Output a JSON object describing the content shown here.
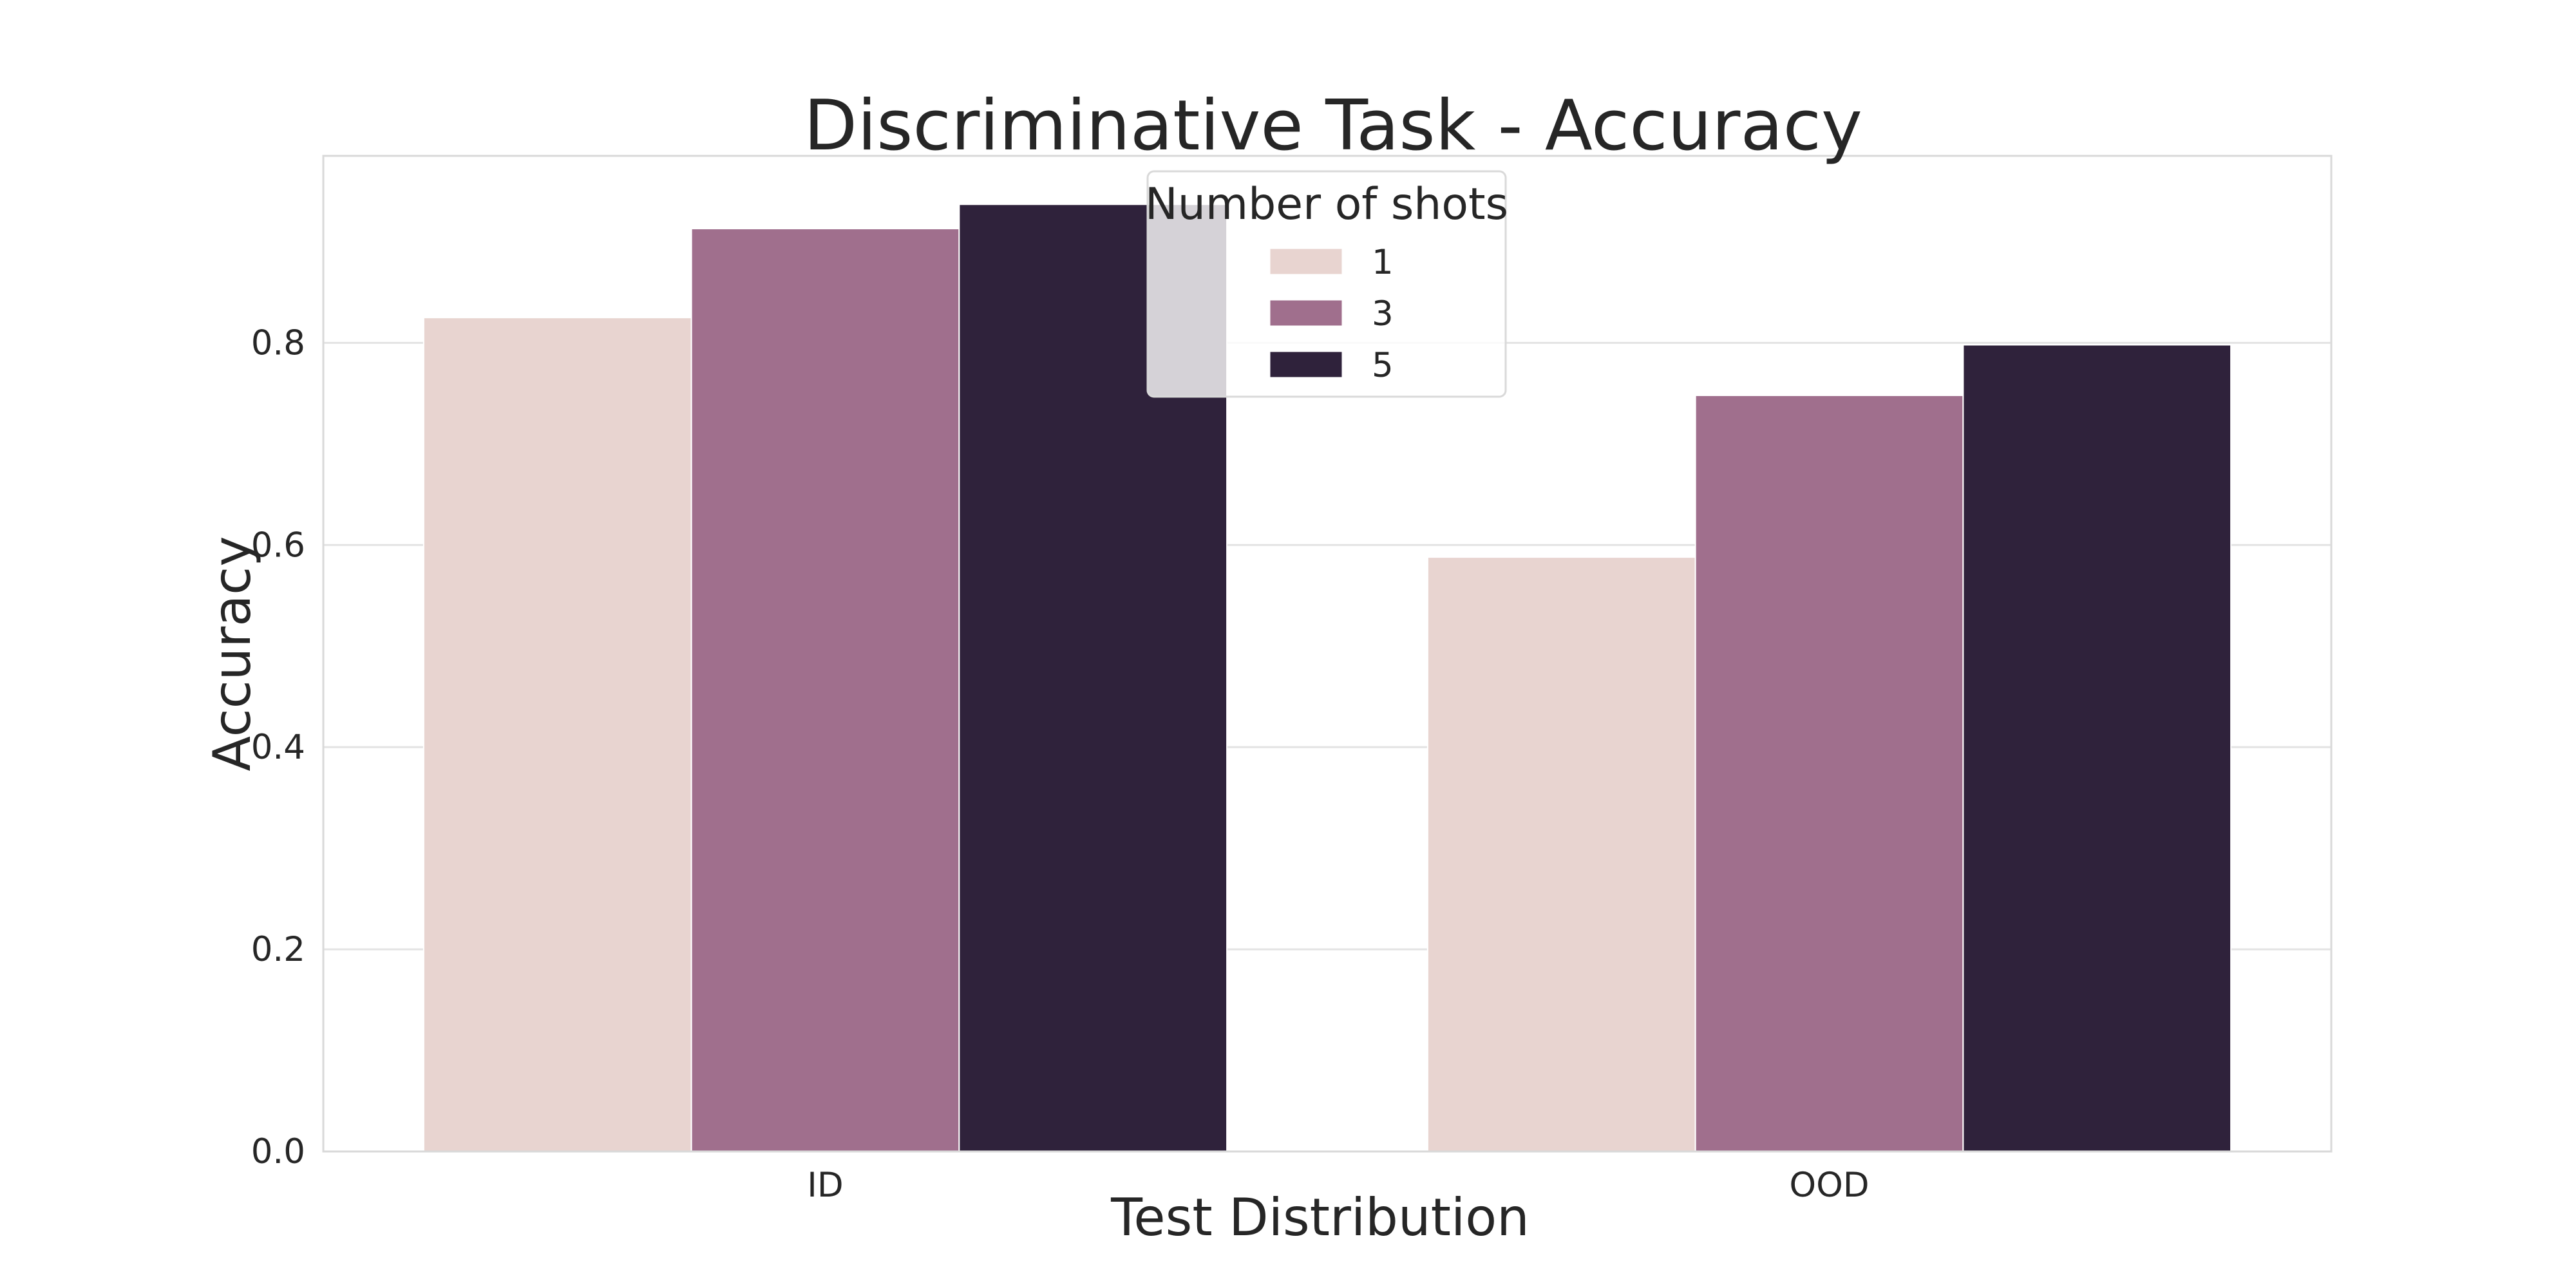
{
  "chart_data": {
    "type": "bar",
    "title": "Discriminative Task - Accuracy",
    "xlabel": "Test Distribution",
    "ylabel": "Accuracy",
    "categories": [
      "ID",
      "OOD"
    ],
    "ylim": [
      0,
      0.985
    ],
    "yticks": [
      "0.0",
      "0.2",
      "0.4",
      "0.6",
      "0.8"
    ],
    "grid": true,
    "legend": {
      "title": "Number of shots",
      "placement": "upper-center"
    },
    "series": [
      {
        "name": "1",
        "color": "#e8d4d0",
        "values": [
          0.825,
          0.588
        ]
      },
      {
        "name": "3",
        "color": "#a06f8d",
        "values": [
          0.913,
          0.748
        ]
      },
      {
        "name": "5",
        "color": "#2f223b",
        "values": [
          0.937,
          0.798
        ]
      }
    ]
  }
}
